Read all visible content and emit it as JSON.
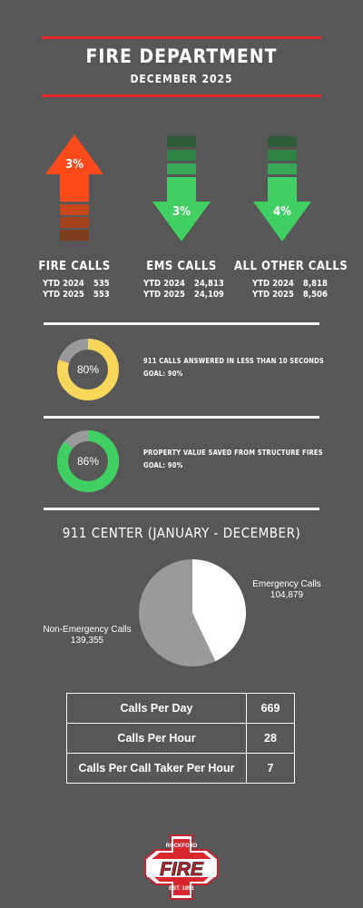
{
  "header": {
    "title": "FIRE DEPARTMENT",
    "subtitle": "DECEMBER 2025"
  },
  "call_types": [
    {
      "name": "FIRE CALLS",
      "change": "3%",
      "direction": "up",
      "rows": [
        {
          "label": "YTD 2024",
          "value": "535"
        },
        {
          "label": "YTD 2025",
          "value": "553"
        }
      ]
    },
    {
      "name": "EMS CALLS",
      "change": "3%",
      "direction": "down",
      "rows": [
        {
          "label": "YTD 2024",
          "value": "24,813"
        },
        {
          "label": "YTD 2025",
          "value": "24,109"
        }
      ]
    },
    {
      "name": "ALL OTHER CALLS",
      "change": "4%",
      "direction": "down",
      "rows": [
        {
          "label": "YTD 2024",
          "value": "8,818"
        },
        {
          "label": "YTD 2025",
          "value": "8,506"
        }
      ]
    }
  ],
  "metrics": [
    {
      "percent": "80%",
      "fraction": 0.8,
      "color": "#f7d65a",
      "label": "911 CALLS ANSWERED IN LESS THAN 10 SECONDS",
      "goal": "GOAL: 90%"
    },
    {
      "percent": "86%",
      "fraction": 0.86,
      "color": "#3fcf63",
      "label": "PROPERTY VALUE SAVED FROM STRUCTURE FIRES",
      "goal": "GOAL: 90%"
    }
  ],
  "center": {
    "title": "911 CENTER (JANUARY - DECEMBER)"
  },
  "chart_data": {
    "type": "pie",
    "categories": [
      "Emergency Calls",
      "Non-Emergency Calls"
    ],
    "values": [
      104879,
      139355
    ],
    "labels": [
      "104,879",
      "139,355"
    ],
    "colors": [
      "#ffffff",
      "#9a9a9a"
    ]
  },
  "stats": [
    {
      "label": "Calls Per Day",
      "value": "669"
    },
    {
      "label": "Calls Per Hour",
      "value": "28"
    },
    {
      "label": "Calls Per Call Taker Per Hour",
      "value": "7"
    }
  ],
  "logo": {
    "top_text": "ROCKFORD",
    "main_text": "FIRE",
    "bottom_text": "EST. 1851"
  },
  "colors": {
    "background": "#575757",
    "accent_red": "#e32b2b",
    "fire_arrow": "#ff4a1c",
    "ems_arrow": "#3fcf63"
  }
}
